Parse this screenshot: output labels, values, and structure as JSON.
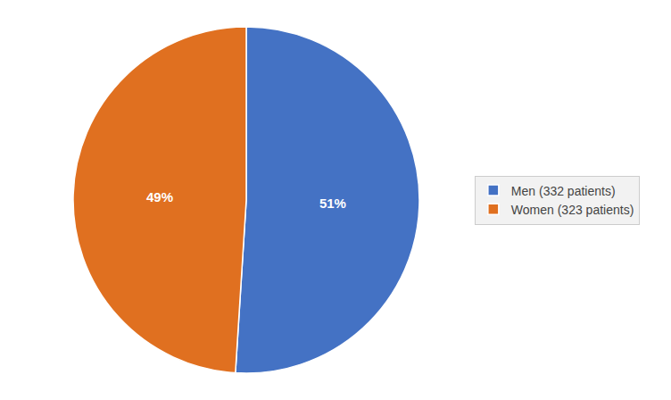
{
  "chart_data": {
    "type": "pie",
    "categories": [
      "Men (332 patients)",
      "Women (323 patients)"
    ],
    "values": [
      51,
      49
    ],
    "value_labels": [
      "51%",
      "49%"
    ],
    "colors": [
      "#4472C4",
      "#E07020"
    ],
    "data_labels": true,
    "legend": "right"
  }
}
